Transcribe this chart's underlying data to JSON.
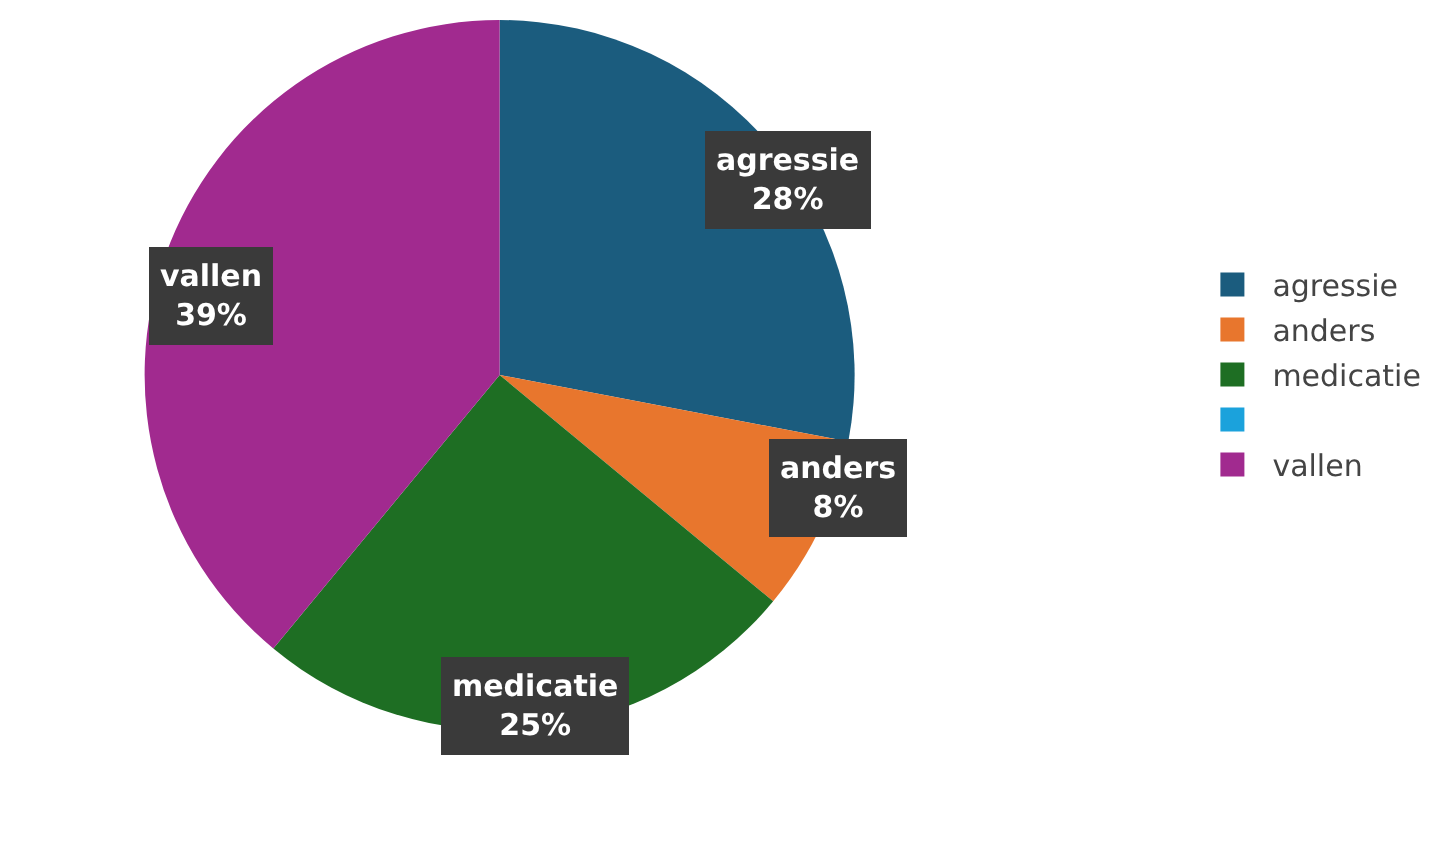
{
  "chart_data": {
    "type": "pie",
    "categories": [
      "agressie",
      "anders",
      "medicatie",
      null,
      "vallen"
    ],
    "values": [
      28,
      8,
      25,
      0,
      39
    ],
    "value_labels": [
      "28%",
      "8%",
      "25%",
      null,
      "39%"
    ],
    "colors": [
      "#1b5c7e",
      "#e8762d",
      "#1e6e23",
      "#1ba2dc",
      "#a12a8f"
    ],
    "legend": "right"
  }
}
